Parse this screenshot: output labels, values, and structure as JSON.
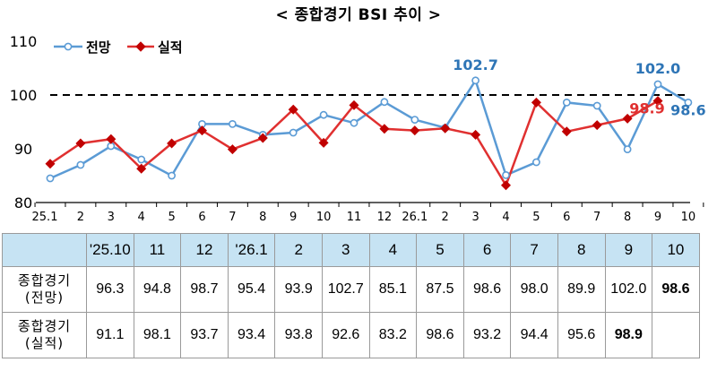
{
  "title": "< 종합경기 BSI 추이 >",
  "chart_data": {
    "type": "line",
    "categories": [
      "25.1",
      "2",
      "3",
      "4",
      "5",
      "6",
      "7",
      "8",
      "9",
      "10",
      "11",
      "12",
      "26.1",
      "2",
      "3",
      "4",
      "5",
      "6",
      "7",
      "8",
      "9",
      "10"
    ],
    "ylim": [
      80,
      110
    ],
    "yticks": [
      80,
      90,
      100,
      110
    ],
    "reference_line": 100,
    "legend_position": "top-left",
    "series": [
      {
        "name": "전망",
        "color": "#5b9bd5",
        "marker": "circle",
        "values": [
          84.5,
          87.0,
          90.5,
          88.0,
          85.0,
          94.6,
          94.6,
          92.6,
          93.0,
          96.3,
          94.8,
          98.7,
          95.4,
          93.9,
          102.7,
          85.1,
          87.5,
          98.6,
          98.0,
          89.9,
          102.0,
          98.6
        ]
      },
      {
        "name": "실적",
        "color": "#e03030",
        "marker": "diamond",
        "values": [
          87.2,
          91.0,
          91.8,
          86.3,
          91.0,
          93.4,
          89.9,
          92.0,
          97.3,
          91.1,
          98.1,
          93.7,
          93.4,
          93.8,
          92.6,
          83.2,
          98.6,
          93.2,
          94.4,
          95.6,
          98.9,
          null
        ]
      }
    ],
    "annotations": [
      {
        "text": "102.7",
        "series": 0,
        "index": 14,
        "color": "#2e75b6"
      },
      {
        "text": "102.0",
        "series": 0,
        "index": 20,
        "color": "#2e75b6"
      },
      {
        "text": "98.9",
        "series": 1,
        "index": 20,
        "color": "#e03030"
      },
      {
        "text": "98.6",
        "series": 0,
        "index": 21,
        "color": "#2e75b6"
      }
    ]
  },
  "table": {
    "headers": [
      "",
      "'25.10",
      "11",
      "12",
      "'26.1",
      "2",
      "3",
      "4",
      "5",
      "6",
      "7",
      "8",
      "9",
      "10"
    ],
    "rows": [
      {
        "label": [
          "종합경기",
          "(전망)"
        ],
        "values": [
          "96.3",
          "94.8",
          "98.7",
          "95.4",
          "93.9",
          "102.7",
          "85.1",
          "87.5",
          "98.6",
          "98.0",
          "89.9",
          "102.0",
          "98.6"
        ]
      },
      {
        "label": [
          "종합경기",
          "(실적)"
        ],
        "values": [
          "91.1",
          "98.1",
          "93.7",
          "93.4",
          "93.8",
          "92.6",
          "83.2",
          "98.6",
          "93.2",
          "94.4",
          "95.6",
          "98.9",
          ""
        ]
      }
    ]
  }
}
